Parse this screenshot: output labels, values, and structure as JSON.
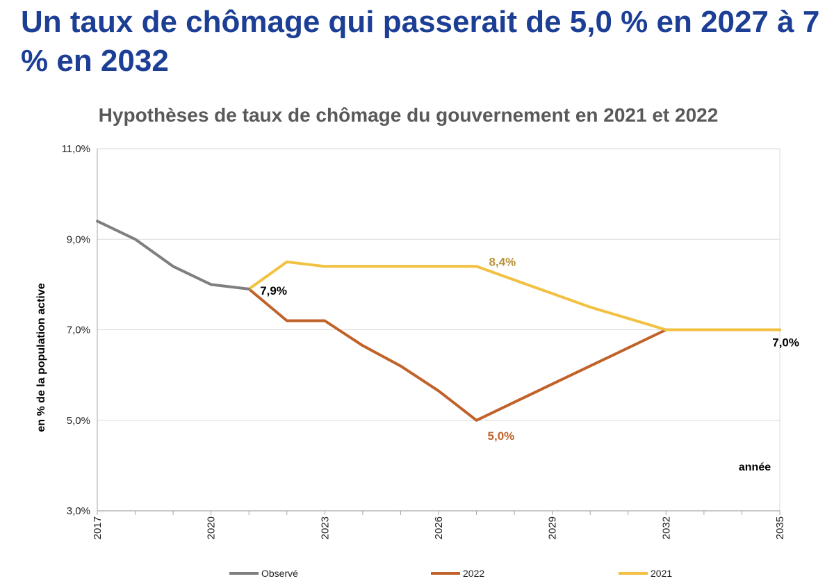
{
  "headline": "Un taux de chômage qui passerait de 5,0 % en 2027 à 7 % en 2032",
  "chart_data": {
    "type": "line",
    "title": "Hypothèses de taux de chômage du gouvernement en 2021 et 2022",
    "ylabel": "en % de la population active",
    "xlabel": "année",
    "xlim": [
      2017,
      2035
    ],
    "ylim": [
      3.0,
      11.0
    ],
    "x_ticks": [
      "2017",
      "2020",
      "2023",
      "2026",
      "2029",
      "2032",
      "2035"
    ],
    "y_ticks": [
      "3,0%",
      "5,0%",
      "7,0%",
      "9,0%",
      "11,0%"
    ],
    "grid": true,
    "legend_position": "bottom",
    "series": [
      {
        "name": "Observé",
        "color": "#7f7f7f",
        "x": [
          2017,
          2018,
          2019,
          2020,
          2021
        ],
        "y": [
          9.4,
          9.0,
          8.4,
          8.0,
          7.9
        ]
      },
      {
        "name": "2022",
        "color": "#c0622a",
        "x": [
          2021,
          2022,
          2023,
          2024,
          2025,
          2026,
          2027,
          2028,
          2029,
          2030,
          2031,
          2032,
          2033,
          2034,
          2035
        ],
        "y": [
          7.9,
          7.2,
          7.2,
          6.65,
          6.2,
          5.65,
          5.0,
          5.4,
          5.8,
          6.2,
          6.6,
          7.0,
          7.0,
          7.0,
          7.0
        ]
      },
      {
        "name": "2021",
        "color": "#f2c142",
        "x": [
          2021,
          2022,
          2023,
          2024,
          2025,
          2026,
          2027,
          2028,
          2029,
          2030,
          2031,
          2032,
          2033,
          2034,
          2035
        ],
        "y": [
          7.9,
          8.5,
          8.4,
          8.4,
          8.4,
          8.4,
          8.4,
          8.1,
          7.8,
          7.5,
          7.25,
          7.0,
          7.0,
          7.0,
          7.0
        ]
      }
    ],
    "annotations": [
      {
        "text": "7,9%",
        "x": 2021,
        "y": 7.9,
        "color": "#000000"
      },
      {
        "text": "8,4%",
        "x": 2027,
        "y": 8.4,
        "color": "#b8913a"
      },
      {
        "text": "5,0%",
        "x": 2027,
        "y": 5.0,
        "color": "#c0622a"
      },
      {
        "text": "7,0%",
        "x": 2035,
        "y": 7.0,
        "color": "#000000"
      }
    ]
  }
}
